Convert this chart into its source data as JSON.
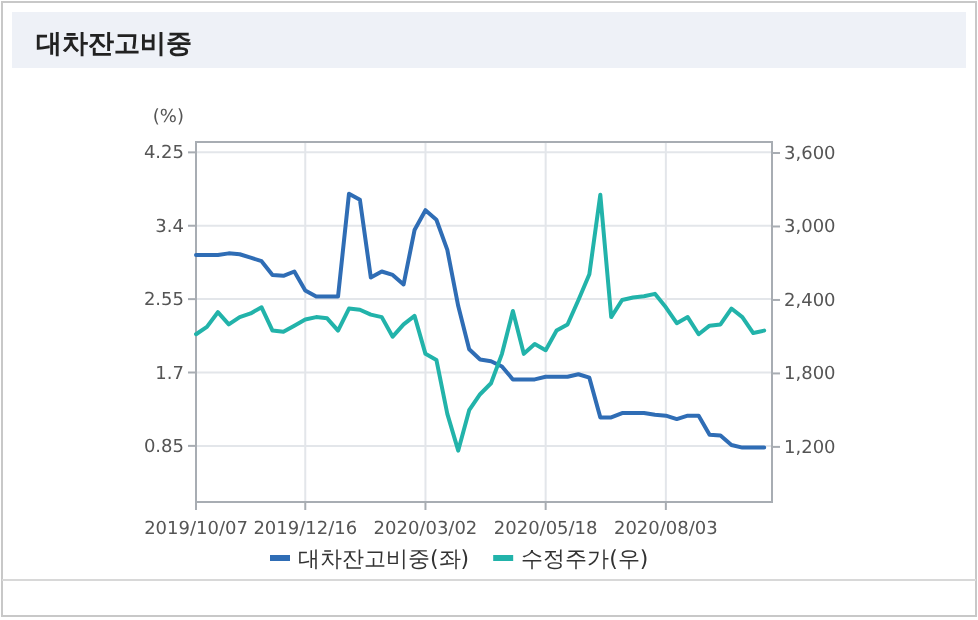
{
  "chart_data": {
    "type": "line",
    "title": "대차잔고비중",
    "ylabel": "(%)",
    "x": [
      "2019-10-07",
      "2019-10-14",
      "2019-10-21",
      "2019-10-28",
      "2019-11-04",
      "2019-11-11",
      "2019-11-18",
      "2019-11-25",
      "2019-12-02",
      "2019-12-09",
      "2019-12-16",
      "2019-12-23",
      "2019-12-30",
      "2020-01-06",
      "2020-01-13",
      "2020-01-20",
      "2020-01-27",
      "2020-02-03",
      "2020-02-10",
      "2020-02-17",
      "2020-02-24",
      "2020-03-02",
      "2020-03-09",
      "2020-03-16",
      "2020-03-23",
      "2020-03-30",
      "2020-04-06",
      "2020-04-13",
      "2020-04-20",
      "2020-04-27",
      "2020-05-04",
      "2020-05-11",
      "2020-05-18",
      "2020-05-25",
      "2020-06-01",
      "2020-06-08",
      "2020-06-15",
      "2020-06-22",
      "2020-06-29",
      "2020-07-06",
      "2020-07-13",
      "2020-07-20",
      "2020-07-27",
      "2020-08-03",
      "2020-08-10",
      "2020-08-17",
      "2020-08-24",
      "2020-08-31",
      "2020-09-07",
      "2020-09-14",
      "2020-09-21",
      "2020-09-28",
      "2020-10-05"
    ],
    "series": [
      {
        "name": "대차잔고비중(좌)",
        "color": "#2f6db5",
        "values": [
          3.06,
          3.06,
          3.06,
          3.08,
          3.07,
          3.03,
          2.99,
          2.83,
          2.82,
          2.87,
          2.65,
          2.58,
          2.58,
          2.58,
          3.77,
          3.7,
          2.8,
          2.87,
          2.83,
          2.72,
          3.35,
          3.58,
          3.47,
          3.12,
          2.47,
          1.97,
          1.85,
          1.83,
          1.77,
          1.62,
          1.62,
          1.62,
          1.65,
          1.65,
          1.65,
          1.68,
          1.64,
          1.18,
          1.18,
          1.23,
          1.23,
          1.23,
          1.21,
          1.2,
          1.16,
          1.2,
          1.2,
          0.98,
          0.97,
          0.86,
          0.83,
          0.83,
          0.83
        ]
      },
      {
        "name": "수정주가(우)",
        "color": "#22b3aa",
        "axis": "y2",
        "values": [
          2120,
          2180,
          2300,
          2200,
          2260,
          2290,
          2340,
          2150,
          2140,
          2190,
          2240,
          2260,
          2250,
          2150,
          2330,
          2320,
          2280,
          2260,
          2100,
          2200,
          2270,
          1960,
          1910,
          1470,
          1170,
          1500,
          1630,
          1720,
          1960,
          2310,
          1960,
          2040,
          1990,
          2150,
          2200,
          2400,
          2610,
          3260,
          2260,
          2400,
          2420,
          2430,
          2450,
          2340,
          2210,
          2260,
          2120,
          2190,
          2200,
          2330,
          2260,
          2130,
          2150
        ]
      }
    ],
    "xlim": [
      "2019-10-07",
      "2020-10-10"
    ],
    "xticks": [
      {
        "value": "2019-10-07",
        "label": "2019/10/07"
      },
      {
        "value": "2019-12-16",
        "label": "2019/12/16"
      },
      {
        "value": "2020-03-02",
        "label": "2020/03/02"
      },
      {
        "value": "2020-05-18",
        "label": "2020/05/18"
      },
      {
        "value": "2020-08-03",
        "label": "2020/08/03"
      }
    ],
    "ylim": [
      0.2,
      4.37
    ],
    "yticks": [
      0.85,
      1.7,
      2.55,
      3.4,
      4.25
    ],
    "y2lim": [
      750,
      3690
    ],
    "y2ticks": [
      {
        "value": 1200,
        "label": "1,200"
      },
      {
        "value": 1800,
        "label": "1,800"
      },
      {
        "value": 2400,
        "label": "2,400"
      },
      {
        "value": 3000,
        "label": "3,000"
      },
      {
        "value": 3600,
        "label": "3,600"
      }
    ],
    "grid": true,
    "legend": "bottom"
  }
}
